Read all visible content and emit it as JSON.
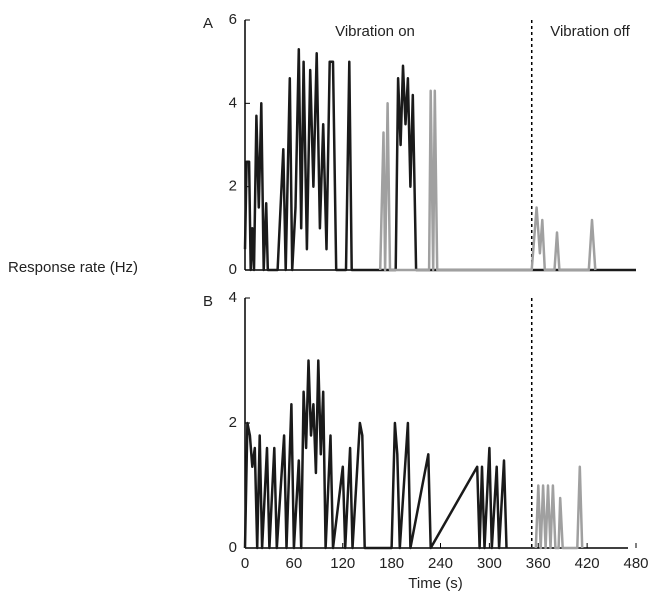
{
  "chart_data": [
    {
      "type": "line",
      "panel_label": "A",
      "ylabel": "Response rate (Hz)",
      "xlim": [
        0,
        480
      ],
      "ylim": [
        0,
        6
      ],
      "yticks": [
        0,
        2,
        4,
        6
      ],
      "vline": 352,
      "annotations": [
        "Vibration on",
        "Vibration off"
      ],
      "series": [
        {
          "color": "#1a1a1a",
          "x": [
            0,
            2,
            5,
            7,
            9,
            11,
            14,
            17,
            20,
            23,
            26,
            28,
            40,
            47,
            50,
            55,
            58,
            62,
            66,
            69,
            72,
            76,
            80,
            84,
            88,
            92,
            96,
            100,
            104,
            108,
            112,
            118,
            124,
            128,
            131,
            150,
            185,
            188,
            191,
            194,
            197,
            200,
            203,
            206,
            210,
            220,
            480
          ],
          "values": [
            0.5,
            2.6,
            2.6,
            0,
            1,
            0,
            3.7,
            1.5,
            4,
            0,
            1.6,
            0,
            0,
            2.9,
            0,
            4.6,
            0,
            1.5,
            5.3,
            1,
            5,
            0.5,
            4.8,
            2,
            5.2,
            1,
            3.5,
            0.5,
            5,
            5,
            0,
            0,
            0,
            5,
            0,
            0,
            0,
            4.6,
            3,
            4.9,
            3.5,
            4.6,
            2,
            4.2,
            0,
            0,
            0
          ]
        },
        {
          "color": "#a0a0a0",
          "x": [
            166,
            170,
            172,
            175,
            178,
            226,
            228,
            231,
            233,
            236,
            352,
            358,
            362,
            365,
            368,
            380,
            383,
            386,
            422,
            426,
            430
          ],
          "values": [
            0,
            3.3,
            0,
            4,
            0,
            0,
            4.3,
            0,
            4.3,
            0,
            0,
            1.5,
            0.4,
            1.2,
            0,
            0,
            0.9,
            0,
            0,
            1.2,
            0
          ]
        }
      ]
    },
    {
      "type": "line",
      "panel_label": "B",
      "xlabel": "Time (s)",
      "xlim": [
        0,
        480
      ],
      "ylim": [
        0,
        4
      ],
      "yticks": [
        0,
        2,
        4
      ],
      "xticks": [
        0,
        60,
        120,
        180,
        240,
        300,
        360,
        420,
        480
      ],
      "vline": 352,
      "series": [
        {
          "color": "#1a1a1a",
          "x": [
            0,
            3,
            6,
            9,
            12,
            15,
            18,
            21,
            27,
            30,
            36,
            39,
            48,
            51,
            57,
            60,
            66,
            69,
            72,
            75,
            78,
            81,
            84,
            87,
            90,
            93,
            96,
            99,
            105,
            108,
            120,
            123,
            129,
            132,
            141,
            144,
            147,
            180,
            184,
            187,
            190,
            200,
            203,
            225,
            228,
            285,
            288,
            291,
            294,
            300,
            303,
            309,
            312,
            318,
            321
          ],
          "values": [
            0,
            2,
            1.8,
            1.3,
            1.6,
            0,
            1.8,
            0,
            1.6,
            0,
            1.6,
            0,
            1.8,
            0,
            2.3,
            0,
            1.4,
            0,
            2.5,
            1.6,
            3,
            1.8,
            2.3,
            1.2,
            3,
            1.5,
            2.5,
            0,
            1.8,
            0,
            1.3,
            0,
            1.6,
            0,
            2,
            1.8,
            0,
            0,
            2,
            1.5,
            0,
            2,
            0,
            1.5,
            0,
            1.3,
            0,
            1.3,
            0,
            1.6,
            0,
            1.3,
            0,
            1.4,
            0
          ]
        },
        {
          "color": "#a0a0a0",
          "x": [
            357,
            360,
            363,
            366,
            369,
            372,
            375,
            378,
            381,
            385,
            387,
            390,
            408,
            411,
            414
          ],
          "values": [
            0,
            1,
            0,
            1,
            0,
            1,
            0,
            1,
            0,
            0,
            0.8,
            0,
            0,
            1.3,
            0
          ]
        }
      ]
    }
  ]
}
